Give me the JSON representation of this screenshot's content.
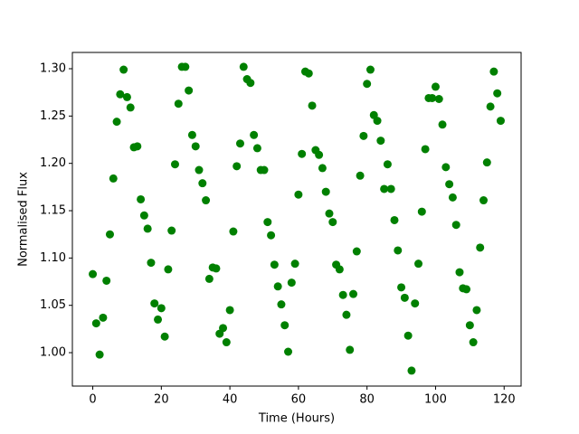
{
  "chart_data": {
    "type": "scatter",
    "x_label": "Time (Hours)",
    "y_label": "Normalised Flux",
    "color": "#008000",
    "x": [
      0,
      1,
      2,
      3,
      4,
      5,
      6,
      7,
      8,
      9,
      10,
      11,
      12,
      13,
      14,
      15,
      16,
      17,
      18,
      19,
      20,
      21,
      22,
      23,
      24,
      25,
      26,
      27,
      28,
      29,
      30,
      31,
      32,
      33,
      34,
      35,
      36,
      37,
      38,
      39,
      40,
      41,
      42,
      43,
      44,
      45,
      46,
      47,
      48,
      49,
      50,
      51,
      52,
      53,
      54,
      55,
      56,
      57,
      58,
      59,
      60,
      61,
      62,
      63,
      64,
      65,
      66,
      67,
      68,
      69,
      70,
      71,
      72,
      73,
      74,
      75,
      76,
      77,
      78,
      79,
      80,
      81,
      82,
      83,
      84,
      85,
      86,
      87,
      88,
      89,
      90,
      91,
      92,
      93,
      94,
      95,
      96,
      97,
      98,
      99,
      100,
      101,
      102,
      103,
      104,
      105,
      106,
      107,
      108,
      109,
      110,
      111,
      112,
      113,
      114,
      115,
      116,
      117,
      118,
      119
    ],
    "y": [
      1.083,
      1.031,
      0.998,
      1.037,
      1.076,
      1.125,
      1.184,
      1.244,
      1.273,
      1.299,
      1.27,
      1.259,
      1.217,
      1.218,
      1.162,
      1.145,
      1.131,
      1.095,
      1.052,
      1.035,
      1.047,
      1.017,
      1.088,
      1.129,
      1.199,
      1.263,
      1.302,
      1.302,
      1.277,
      1.23,
      1.218,
      1.193,
      1.179,
      1.161,
      1.078,
      1.09,
      1.089,
      1.02,
      1.026,
      1.011,
      1.045,
      1.128,
      1.197,
      1.221,
      1.302,
      1.289,
      1.285,
      1.23,
      1.216,
      1.193,
      1.193,
      1.138,
      1.124,
      1.093,
      1.07,
      1.051,
      1.029,
      1.001,
      1.074,
      1.094,
      1.167,
      1.21,
      1.297,
      1.295,
      1.261,
      1.214,
      1.209,
      1.195,
      1.17,
      1.147,
      1.138,
      1.093,
      1.088,
      1.061,
      1.04,
      1.003,
      1.062,
      1.107,
      1.187,
      1.229,
      1.284,
      1.299,
      1.251,
      1.245,
      1.224,
      1.173,
      1.199,
      1.173,
      1.14,
      1.108,
      1.069,
      1.058,
      1.018,
      0.981,
      1.052,
      1.094,
      1.149,
      1.215,
      1.269,
      1.269,
      1.281,
      1.268,
      1.241,
      1.196,
      1.178,
      1.164,
      1.135,
      1.085,
      1.068,
      1.067,
      1.029,
      1.011,
      1.045,
      1.111,
      1.161,
      1.201,
      1.26,
      1.297,
      1.274,
      1.245
    ],
    "xlim": [
      -5.95,
      124.95
    ],
    "xticks": [
      0,
      20,
      40,
      60,
      80,
      100,
      120
    ],
    "ylim": [
      0.9647,
      1.3172
    ],
    "yticks": [
      {
        "value": 1.0,
        "label": "1.00"
      },
      {
        "value": 1.05,
        "label": "1.05"
      },
      {
        "value": 1.1,
        "label": "1.10"
      },
      {
        "value": 1.15,
        "label": "1.15"
      },
      {
        "value": 1.2,
        "label": "1.20"
      },
      {
        "value": 1.25,
        "label": "1.25"
      },
      {
        "value": 1.3,
        "label": "1.30"
      }
    ]
  }
}
